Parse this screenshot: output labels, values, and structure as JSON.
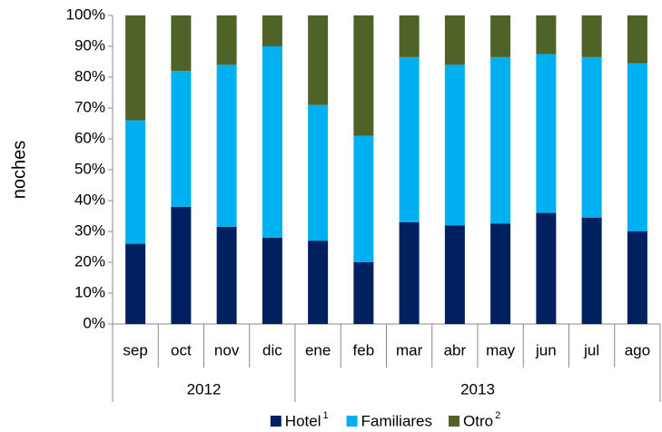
{
  "chart_data": {
    "type": "stacked_bar_100",
    "y_label": "noches",
    "categories": [
      "sep",
      "oct",
      "nov",
      "dic",
      "ene",
      "feb",
      "mar",
      "abr",
      "may",
      "jun",
      "jul",
      "ago"
    ],
    "groups": [
      {
        "label": "2012",
        "span": 4
      },
      {
        "label": "2013",
        "span": 8
      }
    ],
    "series": [
      {
        "name": "Hotel",
        "footnote": "1",
        "color": "#002060",
        "values": [
          26,
          38,
          31.5,
          28,
          27,
          20,
          33,
          32,
          32.5,
          36,
          34.5,
          30
        ]
      },
      {
        "name": "Familiares",
        "color": "#00b0f0",
        "values": [
          40,
          44,
          52.5,
          62,
          44,
          41,
          53.5,
          52,
          54,
          51.5,
          52,
          54.5
        ]
      },
      {
        "name": "Otro",
        "footnote": "2",
        "color": "#4f6228",
        "values": [
          34,
          18,
          16,
          10,
          29,
          39,
          13.5,
          16,
          13.5,
          12.5,
          13.5,
          15.5
        ]
      }
    ],
    "ylim": [
      0,
      100
    ],
    "yticks": [
      {
        "value": 0,
        "label": "0%"
      },
      {
        "value": 10,
        "label": "10%"
      },
      {
        "value": 20,
        "label": "20%"
      },
      {
        "value": 30,
        "label": "30%"
      },
      {
        "value": 40,
        "label": "40%"
      },
      {
        "value": 50,
        "label": "50%"
      },
      {
        "value": 60,
        "label": "60%"
      },
      {
        "value": 70,
        "label": "70%"
      },
      {
        "value": 80,
        "label": "80%"
      },
      {
        "value": 90,
        "label": "90%"
      },
      {
        "value": 100,
        "label": "100%"
      }
    ],
    "legend": "bottom"
  }
}
